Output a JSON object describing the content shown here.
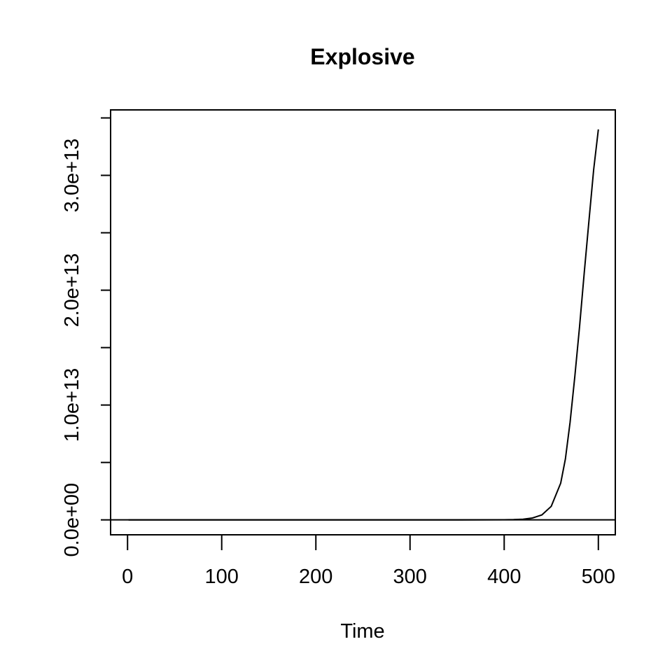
{
  "chart_data": {
    "type": "line",
    "title": "Explosive",
    "xlabel": "Time",
    "ylabel": "",
    "xlim": [
      -18,
      518
    ],
    "ylim": [
      -1300000000000.0,
      35700000000000.0
    ],
    "x_ticks": [
      0,
      100,
      200,
      300,
      400,
      500
    ],
    "x_tick_labels": [
      "0",
      "100",
      "200",
      "300",
      "400",
      "500"
    ],
    "y_ticks": [
      0,
      5000000000000.0,
      10000000000000.0,
      15000000000000.0,
      20000000000000.0,
      25000000000000.0,
      30000000000000.0,
      35000000000000.0
    ],
    "y_tick_labels": [
      "0.0e+00",
      "",
      "1.0e+13",
      "",
      "2.0e+13",
      "",
      "3.0e+13",
      ""
    ],
    "reference_line": {
      "y": 0
    },
    "series": [
      {
        "x": [
          1,
          50,
          100,
          150,
          200,
          250,
          300,
          350,
          400,
          410,
          420,
          430,
          440,
          450,
          460,
          465,
          470,
          475,
          480,
          485,
          490,
          495,
          500
        ],
        "values": [
          0,
          0,
          0,
          0,
          0,
          0,
          0,
          0,
          8000000000.0,
          20000000000.0,
          60000000000.0,
          160000000000.0,
          430000000000.0,
          1180000000000.0,
          3200000000000.0,
          5300000000000.0,
          8500000000000.0,
          12500000000000.0,
          16800000000000.0,
          21500000000000.0,
          26000000000000.0,
          30500000000000.0,
          34000000000000.0
        ]
      }
    ],
    "grid": false,
    "legend": "none"
  }
}
